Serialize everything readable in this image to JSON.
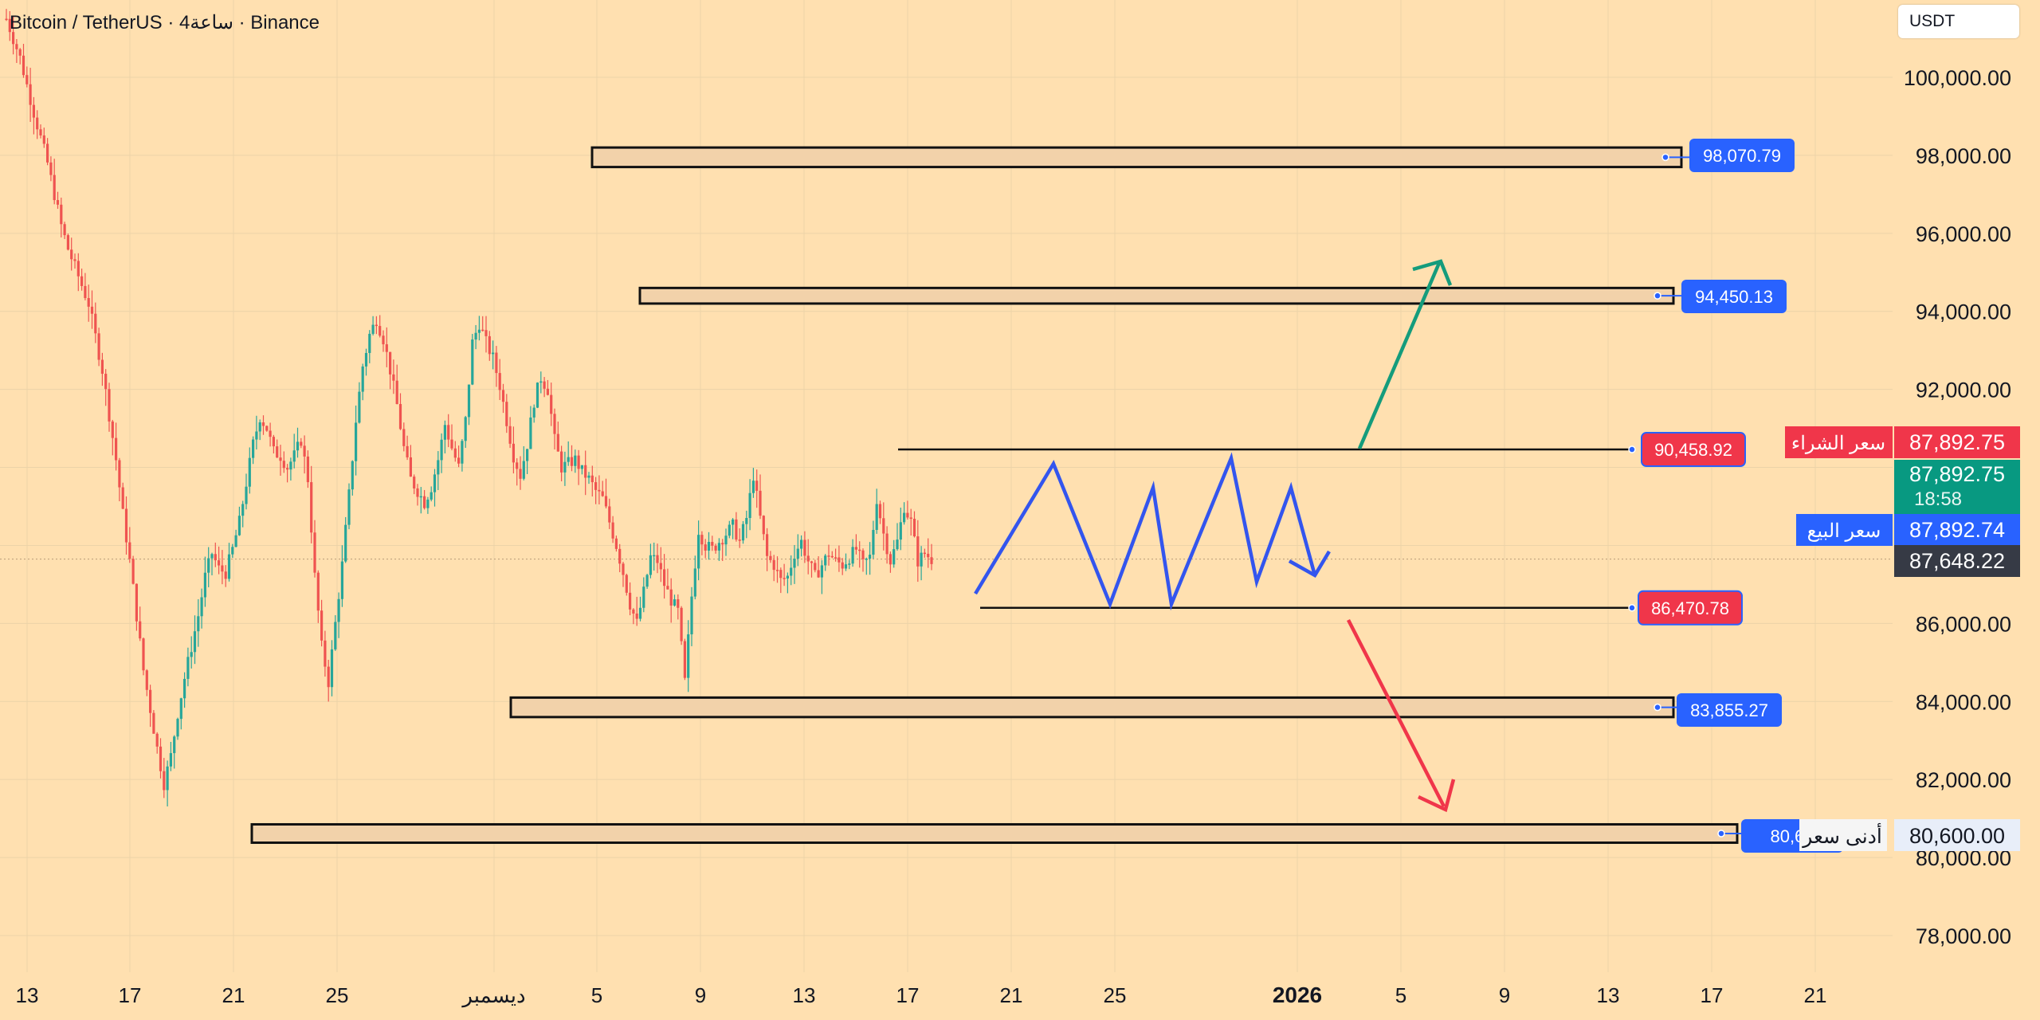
{
  "header": {
    "symbol_title": "Bitcoin / TetherUS · 4ساعة · Binance",
    "currency": "USDT"
  },
  "colors": {
    "background": "#ffe0b0",
    "up": "#26a69a",
    "down": "#ef5350",
    "blue": "#2962ff",
    "pattern": "#3355ee",
    "arrow_up": "#149c7c",
    "arrow_down": "#f0364a"
  },
  "chart_data": {
    "type": "candlestick",
    "ylim": [
      76800,
      102000
    ],
    "y_ticks": [
      "100,000.00",
      "98,000.00",
      "96,000.00",
      "94,000.00",
      "92,000.00",
      "86,000.00",
      "84,000.00",
      "82,000.00",
      "80,000.00",
      "78,000.00"
    ],
    "x_ticks": [
      "13",
      "17",
      "21",
      "25",
      "ديسمبر",
      "5",
      "9",
      "13",
      "17",
      "21",
      "25",
      "2026",
      "5",
      "9",
      "13",
      "17",
      "21"
    ],
    "price_path": [
      [
        0,
        101500
      ],
      [
        4,
        100500
      ],
      [
        8,
        99100
      ],
      [
        12,
        97800
      ],
      [
        16,
        96200
      ],
      [
        18,
        95600
      ],
      [
        24,
        94200
      ],
      [
        28,
        92500
      ],
      [
        32,
        90200
      ],
      [
        34,
        88800
      ],
      [
        36,
        87600
      ],
      [
        38,
        86200
      ],
      [
        40,
        84800
      ],
      [
        42,
        83800
      ],
      [
        44,
        82800
      ],
      [
        46,
        81900
      ],
      [
        48,
        82600
      ],
      [
        50,
        83700
      ],
      [
        52,
        84600
      ],
      [
        54,
        85400
      ],
      [
        56,
        86200
      ],
      [
        58,
        87200
      ],
      [
        60,
        87800
      ],
      [
        62,
        87400
      ],
      [
        64,
        87300
      ],
      [
        66,
        87900
      ],
      [
        68,
        88600
      ],
      [
        70,
        89600
      ],
      [
        72,
        90600
      ],
      [
        74,
        91300
      ],
      [
        76,
        91000
      ],
      [
        78,
        90400
      ],
      [
        80,
        90300
      ],
      [
        82,
        90000
      ],
      [
        84,
        90300
      ],
      [
        86,
        90700
      ],
      [
        88,
        89700
      ],
      [
        90,
        87200
      ],
      [
        92,
        85400
      ],
      [
        94,
        84500
      ],
      [
        96,
        86000
      ],
      [
        98,
        87500
      ],
      [
        100,
        89300
      ],
      [
        102,
        91200
      ],
      [
        104,
        92600
      ],
      [
        106,
        93400
      ],
      [
        108,
        93800
      ],
      [
        110,
        93300
      ],
      [
        112,
        92500
      ],
      [
        114,
        91600
      ],
      [
        116,
        90500
      ],
      [
        118,
        89700
      ],
      [
        120,
        89400
      ],
      [
        122,
        89100
      ],
      [
        124,
        89500
      ],
      [
        126,
        90200
      ],
      [
        128,
        91100
      ],
      [
        130,
        90500
      ],
      [
        132,
        90000
      ],
      [
        134,
        91200
      ],
      [
        136,
        93200
      ],
      [
        138,
        93700
      ],
      [
        140,
        93200
      ],
      [
        142,
        92800
      ],
      [
        144,
        92100
      ],
      [
        146,
        91200
      ],
      [
        148,
        90300
      ],
      [
        150,
        89800
      ],
      [
        152,
        90600
      ],
      [
        154,
        91700
      ],
      [
        156,
        92300
      ],
      [
        158,
        92000
      ],
      [
        160,
        90700
      ],
      [
        162,
        90000
      ],
      [
        164,
        90100
      ],
      [
        166,
        90200
      ],
      [
        168,
        89900
      ],
      [
        170,
        89700
      ],
      [
        172,
        89400
      ],
      [
        174,
        89200
      ],
      [
        176,
        88600
      ],
      [
        178,
        88000
      ],
      [
        180,
        87300
      ],
      [
        182,
        86500
      ],
      [
        184,
        86000
      ],
      [
        186,
        86800
      ],
      [
        188,
        87700
      ],
      [
        190,
        87600
      ],
      [
        192,
        87000
      ],
      [
        194,
        86600
      ],
      [
        196,
        86300
      ],
      [
        198,
        84500
      ],
      [
        200,
        86700
      ],
      [
        202,
        88400
      ],
      [
        204,
        88000
      ],
      [
        206,
        87900
      ],
      [
        208,
        88100
      ],
      [
        210,
        88300
      ],
      [
        212,
        88500
      ],
      [
        214,
        88100
      ],
      [
        216,
        88700
      ],
      [
        218,
        89800
      ],
      [
        220,
        88700
      ],
      [
        222,
        87700
      ],
      [
        224,
        87500
      ],
      [
        226,
        87100
      ],
      [
        228,
        87200
      ],
      [
        230,
        87800
      ],
      [
        232,
        88100
      ],
      [
        234,
        87600
      ],
      [
        236,
        87200
      ],
      [
        238,
        87500
      ],
      [
        240,
        87800
      ],
      [
        242,
        87600
      ],
      [
        244,
        87500
      ],
      [
        246,
        87700
      ],
      [
        248,
        87900
      ],
      [
        250,
        87500
      ],
      [
        252,
        87700
      ],
      [
        254,
        89200
      ],
      [
        256,
        88300
      ],
      [
        258,
        87600
      ],
      [
        260,
        88100
      ],
      [
        262,
        89000
      ],
      [
        264,
        88600
      ],
      [
        266,
        87600
      ],
      [
        268,
        87800
      ],
      [
        270,
        87648
      ]
    ],
    "zones": [
      {
        "label": "98,070.79",
        "high": 98200,
        "low": 97700,
        "start": "5",
        "end": "15"
      },
      {
        "label": "94,450.13",
        "high": 94600,
        "low": 94200,
        "start": "7",
        "end": "15"
      },
      {
        "label": "83,855.27",
        "high": 84100,
        "low": 83600,
        "start": "3",
        "end": "15"
      },
      {
        "label": "80,62",
        "high": 80850,
        "low": 80380,
        "start": "22",
        "end": "17"
      }
    ],
    "levels": [
      {
        "label": "90,458.92",
        "value": 90460,
        "color": "#f0364a"
      },
      {
        "label": "86,470.78",
        "value": 86400,
        "color": "#f0364a"
      }
    ],
    "price_tags": {
      "buy_label": "سعر الشراء",
      "buy_value": "87,892.75",
      "last_value": "87,892.75",
      "countdown": "18:58",
      "sell_label": "سعر البيع",
      "sell_value": "87,892.74",
      "crosshair_value": "87,648.22",
      "low_label": "أدنى سعر",
      "low_value": "80,600.00"
    }
  }
}
